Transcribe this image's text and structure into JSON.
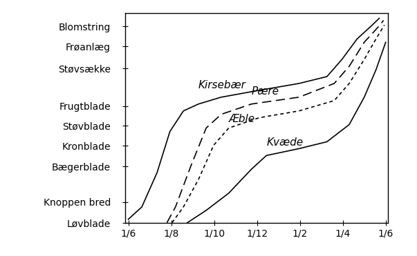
{
  "chart_data": {
    "type": "line",
    "xlim": [
      -0.15,
      12.1
    ],
    "ylim": [
      0,
      30.6
    ],
    "xticks": [
      {
        "value": 0,
        "label": "1/6"
      },
      {
        "value": 2,
        "label": "1/8"
      },
      {
        "value": 4,
        "label": "1/10"
      },
      {
        "value": 6,
        "label": "1/12"
      },
      {
        "value": 8,
        "label": "1/2"
      },
      {
        "value": 10,
        "label": "1/4"
      },
      {
        "value": 12,
        "label": "1/6"
      }
    ],
    "yticks": [
      {
        "value": 0,
        "label": "Løvblade"
      },
      {
        "value": 3.0,
        "label": "Knoppen bred"
      },
      {
        "value": 8.2,
        "label": "Bægerblade"
      },
      {
        "value": 11.2,
        "label": "Kronblade"
      },
      {
        "value": 14.2,
        "label": "Støvblade"
      },
      {
        "value": 17.0,
        "label": "Frugtblade"
      },
      {
        "value": 22.5,
        "label": "Støvsække"
      },
      {
        "value": 25.7,
        "label": "Frøanlæg"
      },
      {
        "value": 28.6,
        "label": "Blomstring"
      }
    ],
    "grid": false,
    "series": [
      {
        "name": "Kirsebær",
        "color": "#000000",
        "line_style": "solid",
        "x": [
          0,
          0.63,
          1.34,
          1.94,
          2.57,
          3.27,
          4.33,
          6.1,
          7.96,
          9.26,
          9.96,
          10.67,
          11.37,
          11.7
        ],
        "values": [
          0.5,
          2.3,
          7.3,
          13.3,
          16.3,
          17.3,
          18.3,
          19.3,
          20.3,
          21.3,
          23.8,
          26.8,
          28.8,
          29.8
        ]
      },
      {
        "name": "Pære",
        "color": "#000000",
        "line_style": "dashed",
        "x": [
          1.8,
          2.2,
          2.92,
          3.63,
          4.33,
          5.74,
          7.96,
          9.6,
          10.3,
          11.0,
          11.73,
          11.9
        ],
        "values": [
          0,
          2.3,
          8.3,
          13.8,
          15.8,
          17.3,
          18.3,
          20.3,
          22.8,
          26.3,
          28.8,
          29.5
        ]
      },
      {
        "name": "Æble",
        "color": "#000000",
        "line_style": "dotted",
        "x": [
          2.04,
          2.57,
          3.27,
          3.98,
          4.68,
          6.1,
          7.96,
          9.6,
          10.3,
          11.0,
          11.55,
          11.94
        ],
        "values": [
          0,
          2.3,
          6.3,
          11.3,
          13.8,
          15.3,
          16.3,
          17.8,
          20.3,
          23.8,
          26.8,
          28.8
        ]
      },
      {
        "name": "Kvæde",
        "color": "#000000",
        "line_style": "solid",
        "x": [
          2.75,
          3.63,
          4.68,
          5.74,
          6.44,
          7.96,
          9.26,
          10.3,
          11.0,
          11.55,
          12.0
        ],
        "values": [
          0,
          1.8,
          4.3,
          7.8,
          9.8,
          10.8,
          11.8,
          14.3,
          18.3,
          22.3,
          26.3
        ]
      }
    ]
  }
}
